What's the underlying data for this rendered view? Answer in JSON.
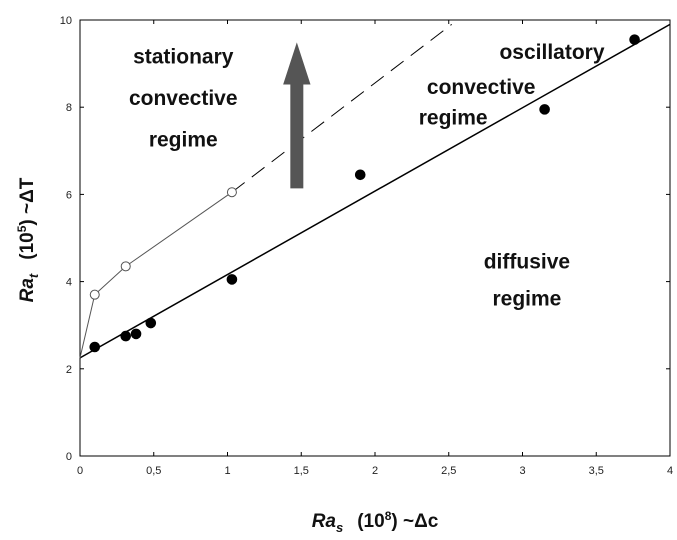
{
  "chart_data": {
    "type": "scatter",
    "x_axis": {
      "label": {
        "main": "Ra",
        "sub": "s",
        "pre": "(10",
        "sup": "8",
        "post": ") ~Δc"
      },
      "lim": [
        0,
        4
      ],
      "ticks": [
        0,
        0.5,
        1,
        1.5,
        2,
        2.5,
        3,
        3.5,
        4
      ],
      "tick_labels": [
        "0",
        "0,5",
        "1",
        "1,5",
        "2",
        "2,5",
        "3",
        "3,5",
        "4"
      ]
    },
    "y_axis": {
      "label": {
        "main": "Ra",
        "sub": "t",
        "pre": "(10",
        "sup": "5",
        "post": ") ~ΔT"
      },
      "lim": [
        0,
        10
      ],
      "ticks": [
        0,
        2,
        4,
        6,
        8,
        10
      ],
      "tick_labels": [
        "0",
        "2",
        "4",
        "6",
        "8",
        "10"
      ]
    },
    "grid": false,
    "series": [
      {
        "marker": "filled-circle",
        "x": [
          0.1,
          0.31,
          0.38,
          0.48,
          1.03,
          1.9,
          3.15,
          3.76
        ],
        "y": [
          2.5,
          2.75,
          2.8,
          3.05,
          4.05,
          6.45,
          7.95,
          9.55
        ]
      },
      {
        "marker": "open-circle",
        "x": [
          0.1,
          0.31,
          1.03
        ],
        "y": [
          3.7,
          4.35,
          6.05
        ]
      }
    ],
    "lines": [
      {
        "style": "solid",
        "width": 1.5,
        "color": "#000000",
        "x": [
          0,
          4
        ],
        "y": [
          2.25,
          9.9
        ]
      },
      {
        "style": "solid",
        "width": 1,
        "color": "#555555",
        "x": [
          0,
          0.1,
          0.31,
          1.03
        ],
        "y": [
          2.25,
          3.7,
          4.35,
          6.05
        ]
      },
      {
        "style": "dashed",
        "width": 1,
        "color": "#000000",
        "x": [
          1.03,
          2.52
        ],
        "y": [
          6.05,
          9.9
        ]
      }
    ],
    "arrow": {
      "x": 1.47,
      "y_from": 6.15,
      "y_to": 9.45,
      "color": "#555555"
    },
    "annotations": [
      {
        "id": "stationary",
        "lines": [
          "stationary",
          "convective",
          "regime"
        ],
        "x": 0.7,
        "y_lines": [
          9.0,
          8.05,
          7.1
        ]
      },
      {
        "id": "oscillatory",
        "lines": [
          "oscillatory",
          "convective",
          "regime"
        ],
        "x_lines": [
          3.2,
          2.72,
          2.53
        ],
        "y_lines": [
          9.1,
          8.3,
          7.6
        ],
        "anchor": "middle"
      },
      {
        "id": "diffusive",
        "lines": [
          "diffusive",
          "regime"
        ],
        "x": 3.03,
        "y_lines": [
          4.3,
          3.45
        ]
      }
    ]
  }
}
